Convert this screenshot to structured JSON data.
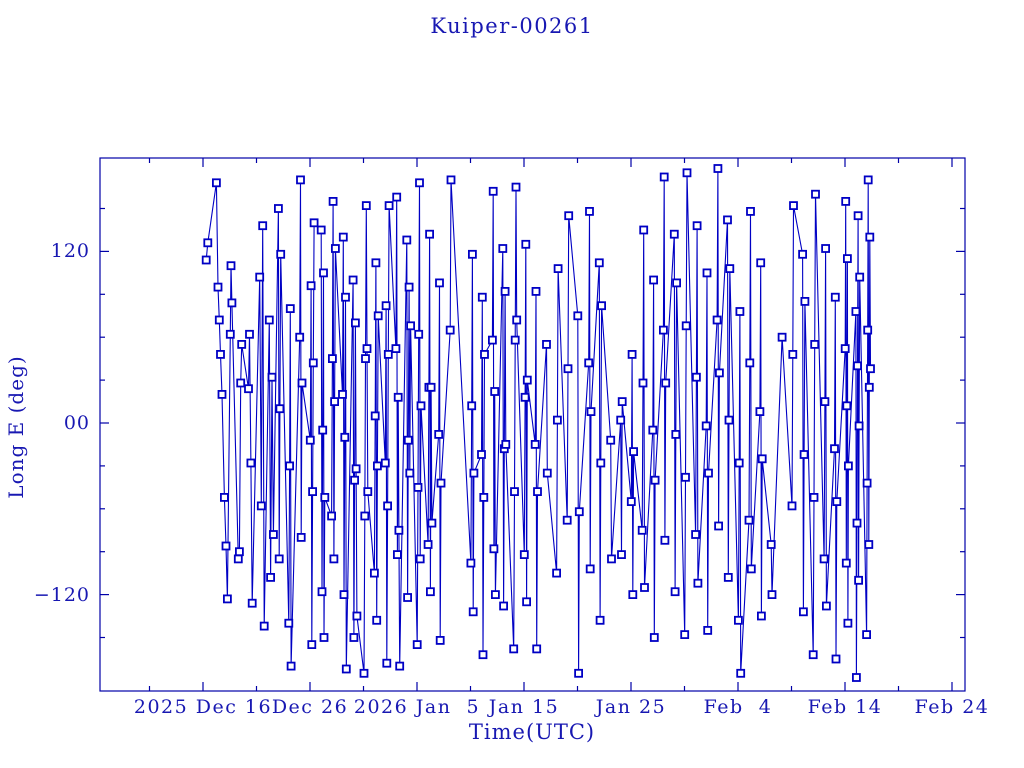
{
  "title": "Kuiper-00261",
  "colors": {
    "background": "#ffffff",
    "text": "#1818b2",
    "axis": "#0000a8",
    "line": "#0000c4",
    "marker_stroke": "#0000c4",
    "marker_fill": "#ffffff"
  },
  "chart_data": {
    "type": "line",
    "title": "Kuiper-00261",
    "xlabel": "Time(UTC)",
    "ylabel": "Long E (deg)",
    "legend": null,
    "grid": false,
    "marker": "open-square",
    "xticks": [
      {
        "day": 10,
        "label": "2025 Dec 16"
      },
      {
        "day": 20,
        "label": "Dec 26"
      },
      {
        "day": 30,
        "label": "2026 Jan  5"
      },
      {
        "day": 40,
        "label": "Jan 15"
      },
      {
        "day": 50,
        "label": "Jan 25"
      },
      {
        "day": 60,
        "label": "Feb  4"
      },
      {
        "day": 70,
        "label": "Feb 14"
      },
      {
        "day": 80,
        "label": "Feb 24"
      }
    ],
    "x_minor_step_days": 5,
    "xlim_days": [
      0.4,
      81.2
    ],
    "yticks": [
      {
        "value": 120,
        "label": "120"
      },
      {
        "value": 0,
        "label": "00"
      },
      {
        "value": -120,
        "label": "-120"
      }
    ],
    "y_minor_step_deg": 30,
    "ylim_deg": [
      -187,
      185
    ],
    "points": [
      [
        10.3,
        114
      ],
      [
        10.45,
        126
      ],
      [
        11.25,
        168
      ],
      [
        11.4,
        95
      ],
      [
        11.52,
        72
      ],
      [
        11.64,
        48
      ],
      [
        11.78,
        20
      ],
      [
        12.0,
        -52
      ],
      [
        12.15,
        -86
      ],
      [
        12.28,
        -123
      ],
      [
        12.55,
        62
      ],
      [
        12.62,
        110
      ],
      [
        12.7,
        84
      ],
      [
        13.3,
        -95
      ],
      [
        13.4,
        -90
      ],
      [
        13.52,
        28
      ],
      [
        13.62,
        55
      ],
      [
        14.25,
        24
      ],
      [
        14.35,
        62
      ],
      [
        14.48,
        -28
      ],
      [
        14.6,
        -126
      ],
      [
        15.3,
        102
      ],
      [
        15.45,
        -58
      ],
      [
        15.58,
        138
      ],
      [
        15.72,
        -142
      ],
      [
        16.2,
        72
      ],
      [
        16.32,
        -108
      ],
      [
        16.45,
        32
      ],
      [
        16.58,
        -78
      ],
      [
        17.05,
        150
      ],
      [
        17.12,
        -95
      ],
      [
        17.19,
        10
      ],
      [
        17.26,
        118
      ],
      [
        18.02,
        -140
      ],
      [
        18.09,
        -30
      ],
      [
        18.16,
        80
      ],
      [
        18.23,
        -170
      ],
      [
        19.04,
        60
      ],
      [
        19.11,
        170
      ],
      [
        19.18,
        -80
      ],
      [
        19.25,
        28
      ],
      [
        20.03,
        -12
      ],
      [
        20.1,
        96
      ],
      [
        20.17,
        -155
      ],
      [
        20.24,
        -48
      ],
      [
        20.31,
        42
      ],
      [
        20.38,
        140
      ],
      [
        21.05,
        135
      ],
      [
        21.12,
        -118
      ],
      [
        21.19,
        -5
      ],
      [
        21.26,
        105
      ],
      [
        21.31,
        -150
      ],
      [
        21.38,
        -52
      ],
      [
        22.02,
        -65
      ],
      [
        22.09,
        45
      ],
      [
        22.16,
        155
      ],
      [
        22.23,
        -95
      ],
      [
        22.3,
        15
      ],
      [
        22.37,
        122
      ],
      [
        23.04,
        20
      ],
      [
        23.11,
        130
      ],
      [
        23.18,
        -120
      ],
      [
        23.25,
        -10
      ],
      [
        23.32,
        88
      ],
      [
        23.39,
        -172
      ],
      [
        24.03,
        100
      ],
      [
        24.1,
        -150
      ],
      [
        24.17,
        -40
      ],
      [
        24.24,
        70
      ],
      [
        24.31,
        -32
      ],
      [
        24.38,
        -135
      ],
      [
        25.05,
        -175
      ],
      [
        25.12,
        -65
      ],
      [
        25.19,
        45
      ],
      [
        25.26,
        152
      ],
      [
        25.33,
        52
      ],
      [
        25.4,
        -48
      ],
      [
        26.02,
        -105
      ],
      [
        26.09,
        5
      ],
      [
        26.16,
        112
      ],
      [
        26.23,
        -138
      ],
      [
        26.3,
        -30
      ],
      [
        26.37,
        75
      ],
      [
        27.04,
        -28
      ],
      [
        27.11,
        82
      ],
      [
        27.18,
        -168
      ],
      [
        27.25,
        -58
      ],
      [
        27.32,
        48
      ],
      [
        27.39,
        152
      ],
      [
        28.03,
        52
      ],
      [
        28.1,
        158
      ],
      [
        28.17,
        -92
      ],
      [
        28.24,
        18
      ],
      [
        28.31,
        -75
      ],
      [
        28.38,
        -170
      ],
      [
        29.05,
        128
      ],
      [
        29.12,
        -122
      ],
      [
        29.19,
        -12
      ],
      [
        29.26,
        95
      ],
      [
        29.33,
        -35
      ],
      [
        29.4,
        68
      ],
      [
        30.02,
        -155
      ],
      [
        30.09,
        -45
      ],
      [
        30.16,
        62
      ],
      [
        30.23,
        168
      ],
      [
        30.3,
        -95
      ],
      [
        30.37,
        12
      ],
      [
        31.04,
        -85
      ],
      [
        31.11,
        25
      ],
      [
        31.18,
        132
      ],
      [
        31.25,
        -118
      ],
      [
        31.32,
        25
      ],
      [
        31.39,
        -70
      ],
      [
        32.03,
        -8
      ],
      [
        32.1,
        98
      ],
      [
        32.17,
        -152
      ],
      [
        32.24,
        -42
      ],
      [
        33.1,
        65
      ],
      [
        33.18,
        170
      ],
      [
        35.04,
        -98
      ],
      [
        35.11,
        12
      ],
      [
        35.18,
        118
      ],
      [
        35.25,
        -132
      ],
      [
        35.32,
        -35
      ],
      [
        36.03,
        -22
      ],
      [
        36.1,
        88
      ],
      [
        36.17,
        -162
      ],
      [
        36.24,
        -52
      ],
      [
        36.31,
        48
      ],
      [
        37.05,
        58
      ],
      [
        37.12,
        162
      ],
      [
        37.19,
        -88
      ],
      [
        37.26,
        22
      ],
      [
        37.33,
        -120
      ],
      [
        38.02,
        122
      ],
      [
        38.09,
        -128
      ],
      [
        38.16,
        -18
      ],
      [
        38.23,
        92
      ],
      [
        38.3,
        -15
      ],
      [
        39.04,
        -158
      ],
      [
        39.11,
        -48
      ],
      [
        39.18,
        58
      ],
      [
        39.25,
        165
      ],
      [
        39.32,
        72
      ],
      [
        40.03,
        -92
      ],
      [
        40.1,
        18
      ],
      [
        40.17,
        125
      ],
      [
        40.24,
        -125
      ],
      [
        40.31,
        30
      ],
      [
        41.05,
        -15
      ],
      [
        41.12,
        92
      ],
      [
        41.19,
        -158
      ],
      [
        41.26,
        -48
      ],
      [
        42.1,
        55
      ],
      [
        42.18,
        -35
      ],
      [
        43.05,
        -105
      ],
      [
        43.12,
        2
      ],
      [
        43.19,
        108
      ],
      [
        44.04,
        -68
      ],
      [
        44.11,
        38
      ],
      [
        44.18,
        145
      ],
      [
        45.03,
        75
      ],
      [
        45.1,
        -175
      ],
      [
        45.17,
        -62
      ],
      [
        46.05,
        42
      ],
      [
        46.12,
        148
      ],
      [
        46.19,
        -102
      ],
      [
        46.26,
        8
      ],
      [
        47.04,
        112
      ],
      [
        47.11,
        -138
      ],
      [
        47.18,
        -28
      ],
      [
        47.25,
        82
      ],
      [
        48.1,
        -12
      ],
      [
        48.18,
        -95
      ],
      [
        49.04,
        2
      ],
      [
        49.11,
        -92
      ],
      [
        49.18,
        15
      ],
      [
        50.03,
        -55
      ],
      [
        50.1,
        48
      ],
      [
        50.17,
        -120
      ],
      [
        50.24,
        -20
      ],
      [
        51.05,
        -75
      ],
      [
        51.12,
        28
      ],
      [
        51.19,
        135
      ],
      [
        51.26,
        -115
      ],
      [
        52.04,
        -5
      ],
      [
        52.11,
        100
      ],
      [
        52.18,
        -150
      ],
      [
        52.25,
        -40
      ],
      [
        53.03,
        65
      ],
      [
        53.1,
        172
      ],
      [
        53.17,
        -82
      ],
      [
        53.24,
        28
      ],
      [
        54.05,
        132
      ],
      [
        54.12,
        -118
      ],
      [
        54.19,
        -8
      ],
      [
        54.26,
        98
      ],
      [
        55.02,
        -148
      ],
      [
        55.09,
        -38
      ],
      [
        55.16,
        68
      ],
      [
        55.23,
        175
      ],
      [
        56.04,
        -78
      ],
      [
        56.11,
        32
      ],
      [
        56.18,
        138
      ],
      [
        56.25,
        -112
      ],
      [
        57.03,
        -2
      ],
      [
        57.1,
        105
      ],
      [
        57.17,
        -145
      ],
      [
        57.24,
        -35
      ],
      [
        58.05,
        72
      ],
      [
        58.12,
        178
      ],
      [
        58.19,
        -72
      ],
      [
        58.26,
        35
      ],
      [
        59.02,
        142
      ],
      [
        59.09,
        -108
      ],
      [
        59.16,
        2
      ],
      [
        59.23,
        108
      ],
      [
        60.04,
        -138
      ],
      [
        60.11,
        -28
      ],
      [
        60.18,
        78
      ],
      [
        60.25,
        -175
      ],
      [
        61.03,
        -68
      ],
      [
        61.1,
        42
      ],
      [
        61.17,
        148
      ],
      [
        61.24,
        -102
      ],
      [
        62.05,
        8
      ],
      [
        62.12,
        112
      ],
      [
        62.19,
        -135
      ],
      [
        62.26,
        -25
      ],
      [
        63.1,
        -85
      ],
      [
        63.18,
        -120
      ],
      [
        64.12,
        60
      ],
      [
        65.05,
        -58
      ],
      [
        65.12,
        48
      ],
      [
        65.19,
        152
      ],
      [
        66.04,
        118
      ],
      [
        66.11,
        -132
      ],
      [
        66.18,
        -22
      ],
      [
        66.25,
        85
      ],
      [
        67.03,
        -162
      ],
      [
        67.1,
        -52
      ],
      [
        67.17,
        55
      ],
      [
        67.24,
        160
      ],
      [
        68.05,
        -95
      ],
      [
        68.12,
        15
      ],
      [
        68.19,
        122
      ],
      [
        68.26,
        -128
      ],
      [
        69.02,
        -18
      ],
      [
        69.09,
        88
      ],
      [
        69.16,
        -165
      ],
      [
        69.23,
        -55
      ],
      [
        70.02,
        52
      ],
      [
        70.07,
        155
      ],
      [
        70.12,
        -98
      ],
      [
        70.17,
        12
      ],
      [
        70.22,
        115
      ],
      [
        70.27,
        -140
      ],
      [
        70.32,
        -30
      ],
      [
        71.02,
        78
      ],
      [
        71.07,
        -178
      ],
      [
        71.12,
        -70
      ],
      [
        71.17,
        40
      ],
      [
        71.22,
        145
      ],
      [
        71.27,
        -110
      ],
      [
        71.32,
        -2
      ],
      [
        71.37,
        102
      ],
      [
        72.02,
        -148
      ],
      [
        72.07,
        -42
      ],
      [
        72.12,
        65
      ],
      [
        72.17,
        170
      ],
      [
        72.22,
        -85
      ],
      [
        72.27,
        25
      ],
      [
        72.32,
        130
      ],
      [
        72.38,
        38
      ]
    ]
  }
}
